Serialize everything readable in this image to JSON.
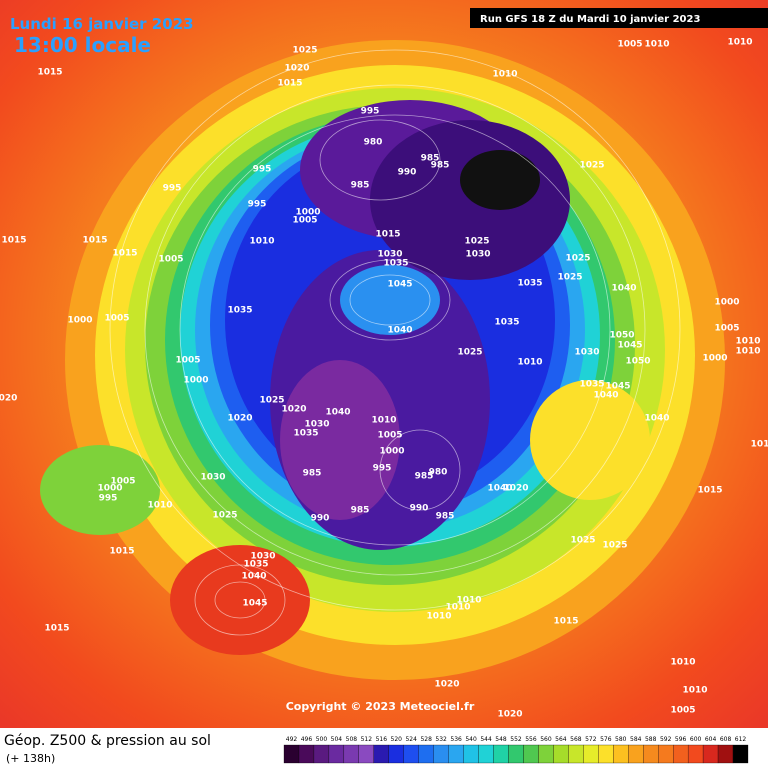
{
  "header": {
    "date": "Lundi 16 janvier 2023",
    "time": "13:00 locale",
    "run": "Run GFS 18 Z du Mardi 10 janvier 2023"
  },
  "footer": {
    "title": "Géop. Z500 & pression au sol",
    "lead": "(+ 138h)"
  },
  "copyright": "Copyright © 2023 Meteociel.fr",
  "pressure_labels": [
    "1025",
    "1020",
    "1015",
    "1015",
    "1005",
    "1010",
    "1010",
    "1010",
    "995",
    "980",
    "985",
    "990",
    "985",
    "985",
    "995",
    "995",
    "995",
    "1000",
    "1005",
    "1015",
    "1010",
    "1015",
    "1015",
    "1015",
    "1005",
    "1025",
    "1030",
    "1030",
    "1035",
    "1025",
    "1025",
    "1025",
    "1035",
    "1040",
    "1045",
    "1035",
    "1000",
    "1005",
    "1040",
    "1035",
    "1000",
    "1005",
    "1050",
    "1045",
    "1050",
    "1000",
    "1010",
    "1010",
    "1030",
    "1025",
    "1010",
    "1005",
    "1000",
    "1035",
    "1045",
    "1040",
    "1025",
    "1020",
    "1040",
    "1030",
    "1035",
    "1020",
    "1010",
    "1005",
    "1040",
    "1000",
    "995",
    "985",
    "985",
    "980",
    "1030",
    "1005",
    "1000",
    "995",
    "1040",
    "1020",
    "1015",
    "1010",
    "1025",
    "990",
    "985",
    "985",
    "990",
    "1025",
    "1025",
    "1015",
    "1030",
    "1035",
    "1040",
    "1045",
    "1010",
    "1010",
    "1010",
    "1015",
    "1015",
    "1010",
    "1020",
    "1010",
    "1005",
    "1020",
    "020",
    "101"
  ],
  "colorbar": {
    "ticks": [
      492,
      496,
      500,
      504,
      508,
      512,
      516,
      520,
      524,
      528,
      532,
      536,
      540,
      544,
      548,
      552,
      556,
      560,
      564,
      568,
      572,
      576,
      580,
      584,
      588,
      592,
      596,
      600,
      604,
      608,
      612
    ],
    "colors": [
      "#2a0030",
      "#4a0a5a",
      "#5a1a80",
      "#6a2aa0",
      "#7a3ab0",
      "#8a4ac0",
      "#2a1ab0",
      "#1a2ee0",
      "#1e4ef0",
      "#1e6ef0",
      "#2a8ef0",
      "#2aa6f0",
      "#20c2e6",
      "#20d2d6",
      "#20d2a6",
      "#32c86e",
      "#50c850",
      "#7ed23a",
      "#a6dc2a",
      "#c8e62a",
      "#e6ec2a",
      "#fce02a",
      "#fcc020",
      "#f9a21e",
      "#f58a1e",
      "#f57a1e",
      "#f2601e",
      "#f24a1e",
      "#d8281e",
      "#a01010",
      "#000000"
    ]
  }
}
